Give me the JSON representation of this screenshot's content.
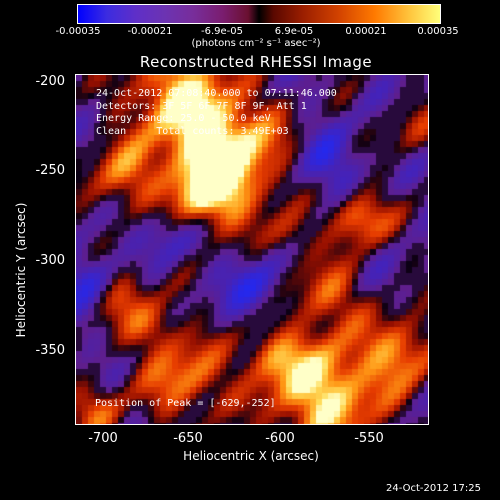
{
  "colorbar": {
    "ticks": [
      "-0.00035",
      "-0.00021",
      "-6.9e-05",
      "6.9e-05",
      "0.00021",
      "0.00035"
    ],
    "units": "(photons cm⁻² s⁻¹ asec⁻²)",
    "colors": [
      "#0000ff",
      "#6c33b2",
      "#000000",
      "#d24200",
      "#ffff7a"
    ]
  },
  "plot": {
    "title": "Reconstructed RHESSI Image",
    "info_lines": [
      "24-Oct-2012 07:08:40.000 to 07:11:46.000",
      "Detectors: 3F 5F 6F 7F 8F 9F, Att 1",
      "Energy Range: 25.0 - 50.0 keV",
      "Clean     Total counts: 3.49E+03"
    ],
    "peak_text": "Position of Peak = [-629,-252]",
    "xlabel": "Heliocentric X (arcsec)",
    "ylabel": "Heliocentric Y (arcsec)",
    "xticks": [
      "-700",
      "-650",
      "-600",
      "-550"
    ],
    "yticks": [
      "-200",
      "-250",
      "-300",
      "-350"
    ],
    "xrange": [
      -712,
      -526
    ],
    "yrange": [
      -386,
      -193
    ]
  },
  "footer": {
    "timestamp": "24-Oct-2012 17:25"
  }
}
